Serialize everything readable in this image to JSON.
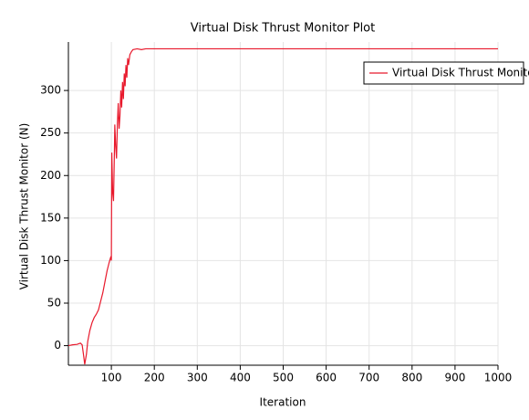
{
  "chart_data": {
    "type": "line",
    "title": "Virtual Disk Thrust Monitor Plot",
    "x_label": "Iteration",
    "y_label": "Virtual Disk Thrust Monitor (N)",
    "x": [
      0,
      10,
      20,
      28,
      32,
      35,
      38,
      42,
      45,
      50,
      55,
      60,
      65,
      70,
      75,
      80,
      85,
      90,
      95,
      99,
      100,
      101,
      103,
      105,
      107,
      108,
      110,
      112,
      114,
      116,
      118,
      120,
      122,
      124,
      126,
      128,
      130,
      132,
      134,
      136,
      138,
      140,
      143,
      146,
      150,
      160,
      170,
      180,
      200,
      1000
    ],
    "series": [
      {
        "name": "Virtual Disk Thrust Monitor",
        "color": "#e8192c",
        "values": [
          0,
          1,
          1.5,
          3,
          1,
          -10,
          -22,
          -10,
          5,
          18,
          27,
          33,
          37,
          42,
          52,
          62,
          75,
          88,
          98,
          105,
          100,
          227,
          180,
          170,
          225,
          260,
          235,
          220,
          260,
          285,
          255,
          270,
          300,
          280,
          310,
          290,
          320,
          305,
          330,
          315,
          338,
          330,
          342,
          345,
          348,
          349,
          348,
          349,
          349,
          349
        ]
      }
    ],
    "xlim": [
      0,
      1000
    ],
    "xticks": [
      100,
      200,
      300,
      400,
      500,
      600,
      700,
      800,
      900,
      1000
    ],
    "ylim": [
      -23,
      357
    ],
    "yticks": [
      0,
      50,
      100,
      150,
      200,
      250,
      300
    ],
    "grid": true,
    "legend": "top-right"
  }
}
